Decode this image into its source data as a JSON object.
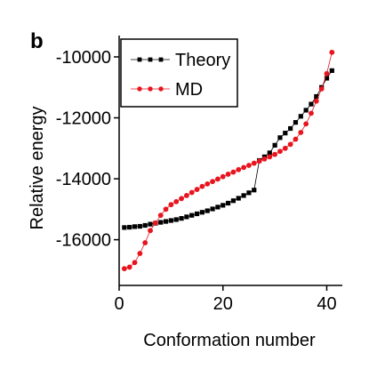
{
  "panel_label": "b",
  "chart_data": {
    "type": "scatter",
    "xlabel": "Conformation number",
    "ylabel": "Relative energy",
    "xlim": [
      0,
      43
    ],
    "ylim": [
      -17500,
      -9300
    ],
    "xticks": [
      0,
      20,
      40
    ],
    "yticks": [
      -16000,
      -14000,
      -12000,
      -10000
    ],
    "xtick_labels": [
      "0",
      "20",
      "40"
    ],
    "ytick_labels": [
      "-16000",
      "-14000",
      "-12000",
      "-10000"
    ],
    "grid": false,
    "legend_position": "top-left",
    "x": [
      1,
      2,
      3,
      4,
      5,
      6,
      7,
      8,
      9,
      10,
      11,
      12,
      13,
      14,
      15,
      16,
      17,
      18,
      19,
      20,
      21,
      22,
      23,
      24,
      25,
      26,
      27,
      28,
      29,
      30,
      31,
      32,
      33,
      34,
      35,
      36,
      37,
      38,
      39,
      40,
      41
    ],
    "series": [
      {
        "name": "Theory",
        "color": "#000000",
        "marker": "square",
        "values": [
          -15600,
          -15590,
          -15570,
          -15560,
          -15530,
          -15490,
          -15460,
          -15430,
          -15400,
          -15370,
          -15340,
          -15300,
          -15250,
          -15200,
          -15150,
          -15100,
          -15050,
          -14990,
          -14930,
          -14870,
          -14800,
          -14720,
          -14640,
          -14550,
          -14460,
          -14370,
          -13400,
          -13280,
          -13150,
          -12900,
          -12650,
          -12500,
          -12350,
          -12150,
          -11950,
          -11750,
          -11550,
          -11300,
          -11000,
          -10700,
          -10450
        ]
      },
      {
        "name": "MD",
        "color": "#e8141e",
        "marker": "circle",
        "values": [
          -16950,
          -16900,
          -16750,
          -16450,
          -16100,
          -15700,
          -15450,
          -15200,
          -15000,
          -14850,
          -14750,
          -14650,
          -14550,
          -14450,
          -14350,
          -14250,
          -14170,
          -14090,
          -14010,
          -13930,
          -13850,
          -13780,
          -13700,
          -13630,
          -13560,
          -13490,
          -13420,
          -13350,
          -13280,
          -13200,
          -13100,
          -13000,
          -12870,
          -12700,
          -12480,
          -12200,
          -11850,
          -11450,
          -11050,
          -10550,
          -9850
        ]
      }
    ]
  }
}
